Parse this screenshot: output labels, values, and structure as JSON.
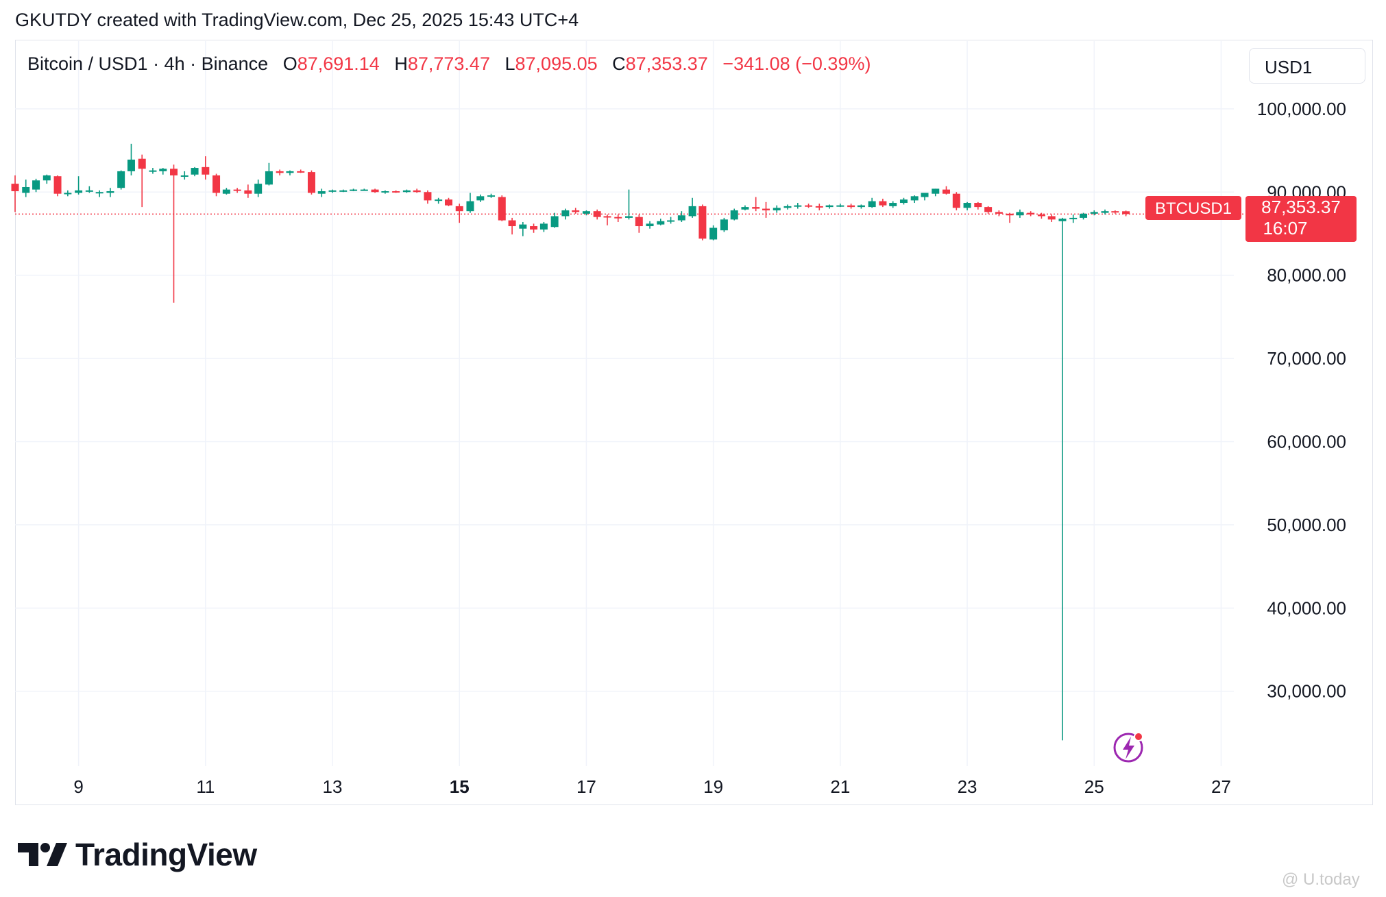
{
  "header": {
    "text": "GKUTDY created with TradingView.com, Dec 25, 2025 15:43 UTC+4"
  },
  "legend": {
    "symbol": "Bitcoin / USD1 · 4h · Binance",
    "o_label": "O",
    "o_value": "87,691.14",
    "h_label": "H",
    "h_value": "87,773.47",
    "l_label": "L",
    "l_value": "87,095.05",
    "c_label": "C",
    "c_value": "87,353.37",
    "change": "−341.08 (−0.39%)"
  },
  "currency_button": "USD1",
  "price_tag": {
    "symbol": "BTCUSD1",
    "price": "87,353.37",
    "countdown": "16:07"
  },
  "brand": {
    "name": "TradingView"
  },
  "watermark": "@ U.today",
  "colors": {
    "up": "#089981",
    "down": "#f23645",
    "grid": "#f0f3fa",
    "text": "#131722",
    "lightning": "#9c27b0"
  },
  "icons": {
    "brand_logo": "tradingview-logo-icon",
    "lightning": "lightning-icon",
    "watermark": "watermark-logo-icon"
  },
  "chart_data": {
    "type": "candlestick",
    "interval": "4h",
    "y_ticks": [
      "100,000.00",
      "90,000.00",
      "80,000.00",
      "70,000.00",
      "60,000.00",
      "50,000.00",
      "40,000.00",
      "30,000.00"
    ],
    "x_ticks": [
      "9",
      "11",
      "13",
      "15",
      "17",
      "19",
      "21",
      "23",
      "25",
      "27"
    ],
    "x_ticks_bold": [
      "15"
    ],
    "ylim": [
      21000,
      106000
    ],
    "xlim": [
      8.0,
      27.2
    ],
    "last_price": 87353.37,
    "series": [
      {
        "name": "BTCUSD1",
        "candles": [
          {
            "t": 8.0,
            "o": 91000,
            "h": 92000,
            "l": 87600,
            "c": 90100
          },
          {
            "t": 8.17,
            "o": 89900,
            "h": 91500,
            "l": 89400,
            "c": 90600
          },
          {
            "t": 8.33,
            "o": 90300,
            "h": 91600,
            "l": 90000,
            "c": 91400
          },
          {
            "t": 8.5,
            "o": 91400,
            "h": 92100,
            "l": 91000,
            "c": 92000
          },
          {
            "t": 8.67,
            "o": 91900,
            "h": 92000,
            "l": 89500,
            "c": 89800
          },
          {
            "t": 8.83,
            "o": 89900,
            "h": 90200,
            "l": 89500,
            "c": 89900
          },
          {
            "t": 9.0,
            "o": 89900,
            "h": 91900,
            "l": 89700,
            "c": 90200
          },
          {
            "t": 9.17,
            "o": 90200,
            "h": 90700,
            "l": 89900,
            "c": 90200
          },
          {
            "t": 9.33,
            "o": 90000,
            "h": 90200,
            "l": 89400,
            "c": 90000
          },
          {
            "t": 9.5,
            "o": 89900,
            "h": 90500,
            "l": 89400,
            "c": 90100
          },
          {
            "t": 9.67,
            "o": 90500,
            "h": 92600,
            "l": 90300,
            "c": 92500
          },
          {
            "t": 9.83,
            "o": 92500,
            "h": 95800,
            "l": 92000,
            "c": 93900
          },
          {
            "t": 10.0,
            "o": 94000,
            "h": 94500,
            "l": 88200,
            "c": 92800
          },
          {
            "t": 10.17,
            "o": 92500,
            "h": 92900,
            "l": 92200,
            "c": 92600
          },
          {
            "t": 10.33,
            "o": 92500,
            "h": 92900,
            "l": 92100,
            "c": 92800
          },
          {
            "t": 10.5,
            "o": 92800,
            "h": 93300,
            "l": 76700,
            "c": 92000
          },
          {
            "t": 10.67,
            "o": 92000,
            "h": 92500,
            "l": 91500,
            "c": 92000
          },
          {
            "t": 10.83,
            "o": 92100,
            "h": 93000,
            "l": 91900,
            "c": 92900
          },
          {
            "t": 11.0,
            "o": 93000,
            "h": 94300,
            "l": 91500,
            "c": 92100
          },
          {
            "t": 11.17,
            "o": 92000,
            "h": 92200,
            "l": 89500,
            "c": 89900
          },
          {
            "t": 11.33,
            "o": 89800,
            "h": 90500,
            "l": 89700,
            "c": 90300
          },
          {
            "t": 11.5,
            "o": 90300,
            "h": 90500,
            "l": 89900,
            "c": 90200
          },
          {
            "t": 11.67,
            "o": 90200,
            "h": 90900,
            "l": 89300,
            "c": 89800
          },
          {
            "t": 11.83,
            "o": 89800,
            "h": 91500,
            "l": 89400,
            "c": 91000
          },
          {
            "t": 12.0,
            "o": 90900,
            "h": 93500,
            "l": 90800,
            "c": 92500
          },
          {
            "t": 12.17,
            "o": 92500,
            "h": 92700,
            "l": 92000,
            "c": 92300
          },
          {
            "t": 12.33,
            "o": 92300,
            "h": 92600,
            "l": 92000,
            "c": 92500
          },
          {
            "t": 12.5,
            "o": 92500,
            "h": 92700,
            "l": 92300,
            "c": 92400
          },
          {
            "t": 12.67,
            "o": 92400,
            "h": 92600,
            "l": 89700,
            "c": 89900
          },
          {
            "t": 12.83,
            "o": 89800,
            "h": 90400,
            "l": 89400,
            "c": 90100
          },
          {
            "t": 13.0,
            "o": 90100,
            "h": 90300,
            "l": 89900,
            "c": 90200
          },
          {
            "t": 13.17,
            "o": 90200,
            "h": 90300,
            "l": 90000,
            "c": 90200
          },
          {
            "t": 13.33,
            "o": 90200,
            "h": 90400,
            "l": 90100,
            "c": 90300
          },
          {
            "t": 13.5,
            "o": 90300,
            "h": 90400,
            "l": 90200,
            "c": 90300
          },
          {
            "t": 13.67,
            "o": 90300,
            "h": 90400,
            "l": 89900,
            "c": 90000
          },
          {
            "t": 13.83,
            "o": 90000,
            "h": 90200,
            "l": 89800,
            "c": 90100
          },
          {
            "t": 14.0,
            "o": 90100,
            "h": 90200,
            "l": 89900,
            "c": 90000
          },
          {
            "t": 14.17,
            "o": 90000,
            "h": 90300,
            "l": 89900,
            "c": 90200
          },
          {
            "t": 14.33,
            "o": 90200,
            "h": 90400,
            "l": 89900,
            "c": 90000
          },
          {
            "t": 14.5,
            "o": 90000,
            "h": 90200,
            "l": 88600,
            "c": 89000
          },
          {
            "t": 14.67,
            "o": 89000,
            "h": 89300,
            "l": 88600,
            "c": 89100
          },
          {
            "t": 14.83,
            "o": 89100,
            "h": 89300,
            "l": 88300,
            "c": 88400
          },
          {
            "t": 15.0,
            "o": 88300,
            "h": 88600,
            "l": 86300,
            "c": 87700
          },
          {
            "t": 15.17,
            "o": 87700,
            "h": 89900,
            "l": 87500,
            "c": 88900
          },
          {
            "t": 15.33,
            "o": 89000,
            "h": 89700,
            "l": 88800,
            "c": 89500
          },
          {
            "t": 15.5,
            "o": 89500,
            "h": 89800,
            "l": 89300,
            "c": 89600
          },
          {
            "t": 15.67,
            "o": 89400,
            "h": 89600,
            "l": 86500,
            "c": 86600
          },
          {
            "t": 15.83,
            "o": 86600,
            "h": 86900,
            "l": 84900,
            "c": 85900
          },
          {
            "t": 16.0,
            "o": 85600,
            "h": 86400,
            "l": 84700,
            "c": 86100
          },
          {
            "t": 16.17,
            "o": 85900,
            "h": 86200,
            "l": 85100,
            "c": 85500
          },
          {
            "t": 16.33,
            "o": 85500,
            "h": 86400,
            "l": 85200,
            "c": 86200
          },
          {
            "t": 16.5,
            "o": 85800,
            "h": 87500,
            "l": 85700,
            "c": 87100
          },
          {
            "t": 16.67,
            "o": 87100,
            "h": 88000,
            "l": 86700,
            "c": 87800
          },
          {
            "t": 16.83,
            "o": 87800,
            "h": 88100,
            "l": 87400,
            "c": 87600
          },
          {
            "t": 17.0,
            "o": 87400,
            "h": 87800,
            "l": 87200,
            "c": 87700
          },
          {
            "t": 17.17,
            "o": 87700,
            "h": 87900,
            "l": 86700,
            "c": 87000
          },
          {
            "t": 17.33,
            "o": 87100,
            "h": 87300,
            "l": 86000,
            "c": 87000
          },
          {
            "t": 17.5,
            "o": 87000,
            "h": 87300,
            "l": 86400,
            "c": 86900
          },
          {
            "t": 17.67,
            "o": 86900,
            "h": 90300,
            "l": 86700,
            "c": 87100
          },
          {
            "t": 17.83,
            "o": 87000,
            "h": 87300,
            "l": 85100,
            "c": 85900
          },
          {
            "t": 18.0,
            "o": 85900,
            "h": 86500,
            "l": 85600,
            "c": 86200
          },
          {
            "t": 18.17,
            "o": 86100,
            "h": 86800,
            "l": 86000,
            "c": 86500
          },
          {
            "t": 18.33,
            "o": 86500,
            "h": 87000,
            "l": 86200,
            "c": 86600
          },
          {
            "t": 18.5,
            "o": 86600,
            "h": 87700,
            "l": 86400,
            "c": 87200
          },
          {
            "t": 18.67,
            "o": 87100,
            "h": 89300,
            "l": 86900,
            "c": 88300
          },
          {
            "t": 18.83,
            "o": 88300,
            "h": 88500,
            "l": 84200,
            "c": 84400
          },
          {
            "t": 19.0,
            "o": 84300,
            "h": 86000,
            "l": 84200,
            "c": 85700
          },
          {
            "t": 19.17,
            "o": 85400,
            "h": 86900,
            "l": 85200,
            "c": 86700
          },
          {
            "t": 19.33,
            "o": 86700,
            "h": 88000,
            "l": 86600,
            "c": 87800
          },
          {
            "t": 19.5,
            "o": 87900,
            "h": 88400,
            "l": 87800,
            "c": 88200
          },
          {
            "t": 19.67,
            "o": 88200,
            "h": 89400,
            "l": 87700,
            "c": 88000
          },
          {
            "t": 19.83,
            "o": 88000,
            "h": 88800,
            "l": 86900,
            "c": 87800
          },
          {
            "t": 20.0,
            "o": 87800,
            "h": 88400,
            "l": 87500,
            "c": 88100
          },
          {
            "t": 20.17,
            "o": 88100,
            "h": 88500,
            "l": 87900,
            "c": 88300
          },
          {
            "t": 20.33,
            "o": 88300,
            "h": 88700,
            "l": 88000,
            "c": 88400
          },
          {
            "t": 20.5,
            "o": 88400,
            "h": 88600,
            "l": 88100,
            "c": 88300
          },
          {
            "t": 20.67,
            "o": 88300,
            "h": 88600,
            "l": 87800,
            "c": 88200
          },
          {
            "t": 20.83,
            "o": 88200,
            "h": 88500,
            "l": 88000,
            "c": 88400
          },
          {
            "t": 21.0,
            "o": 88400,
            "h": 88600,
            "l": 88200,
            "c": 88400
          },
          {
            "t": 21.17,
            "o": 88400,
            "h": 88600,
            "l": 88000,
            "c": 88200
          },
          {
            "t": 21.33,
            "o": 88200,
            "h": 88500,
            "l": 88000,
            "c": 88400
          },
          {
            "t": 21.5,
            "o": 88200,
            "h": 89300,
            "l": 88100,
            "c": 88900
          },
          {
            "t": 21.67,
            "o": 88900,
            "h": 89200,
            "l": 88200,
            "c": 88400
          },
          {
            "t": 21.83,
            "o": 88300,
            "h": 88900,
            "l": 88100,
            "c": 88700
          },
          {
            "t": 22.0,
            "o": 88700,
            "h": 89300,
            "l": 88500,
            "c": 89100
          },
          {
            "t": 22.17,
            "o": 89000,
            "h": 89600,
            "l": 88700,
            "c": 89500
          },
          {
            "t": 22.33,
            "o": 89400,
            "h": 89900,
            "l": 89000,
            "c": 89900
          },
          {
            "t": 22.5,
            "o": 89800,
            "h": 90400,
            "l": 89500,
            "c": 90400
          },
          {
            "t": 22.67,
            "o": 90300,
            "h": 90700,
            "l": 89700,
            "c": 89800
          },
          {
            "t": 22.83,
            "o": 89800,
            "h": 90000,
            "l": 87800,
            "c": 88100
          },
          {
            "t": 23.0,
            "o": 88100,
            "h": 88800,
            "l": 87800,
            "c": 88700
          },
          {
            "t": 23.17,
            "o": 88700,
            "h": 88800,
            "l": 87900,
            "c": 88200
          },
          {
            "t": 23.33,
            "o": 88200,
            "h": 88300,
            "l": 87400,
            "c": 87600
          },
          {
            "t": 23.5,
            "o": 87600,
            "h": 87800,
            "l": 87100,
            "c": 87400
          },
          {
            "t": 23.67,
            "o": 87400,
            "h": 87500,
            "l": 86300,
            "c": 87200
          },
          {
            "t": 23.83,
            "o": 87200,
            "h": 87900,
            "l": 86900,
            "c": 87600
          },
          {
            "t": 24.0,
            "o": 87500,
            "h": 87700,
            "l": 87100,
            "c": 87300
          },
          {
            "t": 24.17,
            "o": 87300,
            "h": 87500,
            "l": 86800,
            "c": 87100
          },
          {
            "t": 24.33,
            "o": 87100,
            "h": 87300,
            "l": 86400,
            "c": 86700
          },
          {
            "t": 24.5,
            "o": 86500,
            "h": 86900,
            "l": 24100,
            "c": 86800
          },
          {
            "t": 24.67,
            "o": 86800,
            "h": 87300,
            "l": 86300,
            "c": 86900
          },
          {
            "t": 24.83,
            "o": 86900,
            "h": 87500,
            "l": 86700,
            "c": 87400
          },
          {
            "t": 25.0,
            "o": 87400,
            "h": 87800,
            "l": 87200,
            "c": 87600
          },
          {
            "t": 25.17,
            "o": 87500,
            "h": 87900,
            "l": 87300,
            "c": 87700
          },
          {
            "t": 25.33,
            "o": 87700,
            "h": 87800,
            "l": 87400,
            "c": 87600
          },
          {
            "t": 25.5,
            "o": 87691.14,
            "h": 87773.47,
            "l": 87095.05,
            "c": 87353.37
          }
        ]
      }
    ]
  }
}
